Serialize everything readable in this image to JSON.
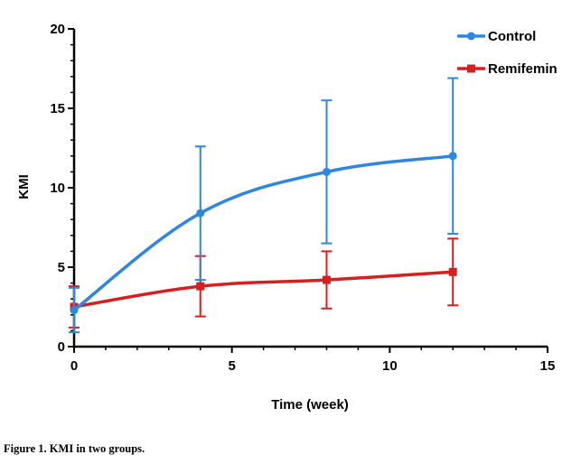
{
  "caption": "Figure 1. KMI in two groups.",
  "colors": {
    "control": "#2f86de",
    "remifemin": "#d81f1f",
    "axis": "#000000"
  },
  "chart_data": {
    "type": "line",
    "title": "",
    "xlabel": "Time (week)",
    "ylabel": "KMI",
    "xlim": [
      0,
      15
    ],
    "ylim": [
      0,
      20
    ],
    "xticks": [
      0,
      5,
      10,
      15
    ],
    "yticks": [
      0,
      5,
      10,
      15,
      20
    ],
    "grid": false,
    "legend_position": "top-right",
    "series": [
      {
        "name": "Control",
        "color": "#2f86de",
        "marker": "circle",
        "x": [
          0,
          4,
          8,
          12
        ],
        "y": [
          2.3,
          8.4,
          11.0,
          12.0
        ],
        "error": [
          1.4,
          4.2,
          4.5,
          4.9
        ]
      },
      {
        "name": "Remifemin",
        "color": "#d81f1f",
        "marker": "square",
        "x": [
          0,
          4,
          8,
          12
        ],
        "y": [
          2.5,
          3.8,
          4.2,
          4.7
        ],
        "error": [
          1.3,
          1.9,
          1.8,
          2.1
        ]
      }
    ]
  }
}
